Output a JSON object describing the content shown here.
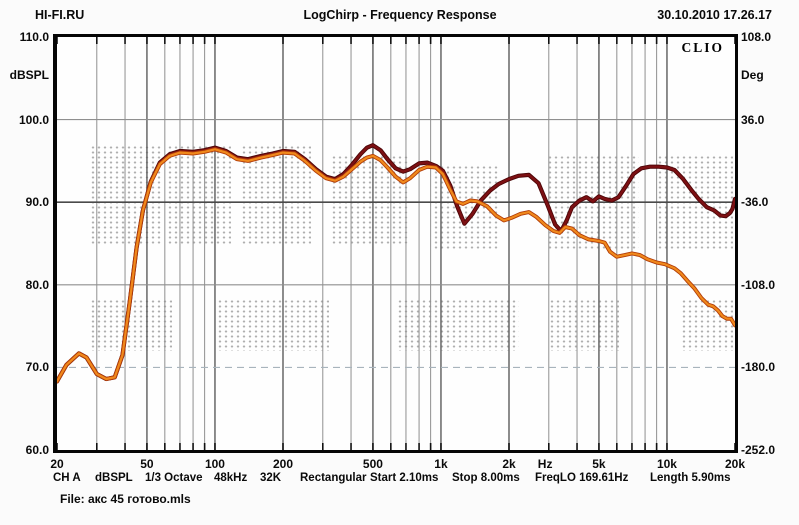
{
  "header": {
    "brand": "HI-FI.RU",
    "title": "LogChirp - Frequency Response",
    "datetime": "30.10.2010 17.26.17"
  },
  "logo": "CLIO",
  "status_bar": {
    "items": [
      "CH A",
      "dBSPL",
      "1/3 Octave",
      "48kHz",
      "32K",
      "Rectangular",
      "Start 2.10ms",
      "Stop 8.00ms",
      "FreqLO 169.61Hz",
      "Length 5.90ms"
    ]
  },
  "file_line": "File: акс 45 готово.mls",
  "chart_data": {
    "type": "line",
    "title": "LogChirp - Frequency Response",
    "x_scale": "log",
    "xlim": [
      20,
      20000
    ],
    "x_ticks": [
      "20",
      "50",
      "100",
      "200",
      "500",
      "1k",
      "2k",
      "5k",
      "10k",
      "20k"
    ],
    "x_tick_values": [
      20,
      50,
      100,
      200,
      500,
      1000,
      2000,
      5000,
      10000,
      20000
    ],
    "x_unit_label": "Hz",
    "x_unit_pos": 2890,
    "grid_freqs": [
      30,
      40,
      50,
      60,
      70,
      80,
      90,
      100,
      200,
      300,
      400,
      500,
      600,
      700,
      800,
      900,
      1000,
      2000,
      3000,
      4000,
      5000,
      6000,
      7000,
      8000,
      9000,
      10000
    ],
    "h_grid_db": [
      100,
      90,
      80,
      70
    ],
    "left_axis": {
      "label": "dBSPL",
      "lim": [
        60,
        110
      ],
      "ticks": [
        "110.0",
        "100.0",
        "90.0",
        "80.0",
        "70.0",
        "60.0"
      ],
      "tick_values": [
        110,
        100,
        90,
        80,
        70,
        60
      ]
    },
    "right_axis": {
      "label": "Deg",
      "lim": [
        -252,
        108
      ],
      "ticks": [
        "108.0",
        "36.0",
        "-36.0",
        "-108.0",
        "-180.0",
        "-252.0"
      ]
    },
    "series": [
      {
        "name": "frequency-response-dark-red",
        "color": "#7d1013",
        "outline": "#4c0507",
        "width": 2.4,
        "points": [
          [
            20,
            68.3
          ],
          [
            22,
            70.3
          ],
          [
            25,
            71.7
          ],
          [
            27,
            71.2
          ],
          [
            30,
            69.2
          ],
          [
            33,
            68.6
          ],
          [
            36,
            68.8
          ],
          [
            39,
            71.5
          ],
          [
            42,
            78.0
          ],
          [
            45,
            84.5
          ],
          [
            48,
            89.0
          ],
          [
            52,
            92.5
          ],
          [
            57,
            94.8
          ],
          [
            63,
            95.8
          ],
          [
            70,
            96.2
          ],
          [
            80,
            96.1
          ],
          [
            90,
            96.3
          ],
          [
            100,
            96.6
          ],
          [
            112,
            96.2
          ],
          [
            125,
            95.4
          ],
          [
            140,
            95.2
          ],
          [
            160,
            95.6
          ],
          [
            180,
            95.9
          ],
          [
            200,
            96.2
          ],
          [
            225,
            96.1
          ],
          [
            250,
            95.2
          ],
          [
            280,
            94.0
          ],
          [
            310,
            93.1
          ],
          [
            340,
            92.8
          ],
          [
            370,
            93.4
          ],
          [
            400,
            94.4
          ],
          [
            440,
            95.8
          ],
          [
            470,
            96.6
          ],
          [
            500,
            96.9
          ],
          [
            540,
            96.3
          ],
          [
            580,
            95.2
          ],
          [
            630,
            94.1
          ],
          [
            680,
            93.7
          ],
          [
            730,
            94.0
          ],
          [
            800,
            94.7
          ],
          [
            870,
            94.8
          ],
          [
            950,
            94.4
          ],
          [
            1020,
            93.8
          ],
          [
            1100,
            92.0
          ],
          [
            1180,
            89.5
          ],
          [
            1270,
            87.4
          ],
          [
            1380,
            88.6
          ],
          [
            1500,
            90.2
          ],
          [
            1650,
            91.4
          ],
          [
            1800,
            92.2
          ],
          [
            2000,
            92.8
          ],
          [
            2200,
            93.2
          ],
          [
            2450,
            93.3
          ],
          [
            2700,
            92.3
          ],
          [
            2950,
            89.8
          ],
          [
            3200,
            87.3
          ],
          [
            3400,
            86.5
          ],
          [
            3600,
            87.8
          ],
          [
            3800,
            89.4
          ],
          [
            4100,
            90.2
          ],
          [
            4400,
            90.6
          ],
          [
            4700,
            90.1
          ],
          [
            5000,
            90.7
          ],
          [
            5300,
            90.4
          ],
          [
            5700,
            90.2
          ],
          [
            6100,
            90.6
          ],
          [
            6600,
            92.0
          ],
          [
            7100,
            93.4
          ],
          [
            7700,
            94.1
          ],
          [
            8400,
            94.3
          ],
          [
            9200,
            94.3
          ],
          [
            10000,
            94.2
          ],
          [
            10800,
            93.9
          ],
          [
            11800,
            92.8
          ],
          [
            12800,
            91.5
          ],
          [
            13800,
            90.4
          ],
          [
            15000,
            89.4
          ],
          [
            16200,
            89.0
          ],
          [
            17200,
            88.4
          ],
          [
            18200,
            88.3
          ],
          [
            19000,
            88.7
          ],
          [
            19500,
            89.2
          ],
          [
            20000,
            90.4
          ]
        ]
      },
      {
        "name": "frequency-response-orange",
        "color": "#f0891c",
        "outline": "#b23c08",
        "width": 2.2,
        "points": [
          [
            20,
            68.3
          ],
          [
            22,
            70.3
          ],
          [
            25,
            71.7
          ],
          [
            27,
            71.2
          ],
          [
            30,
            69.2
          ],
          [
            33,
            68.6
          ],
          [
            36,
            68.8
          ],
          [
            39,
            71.5
          ],
          [
            42,
            78.0
          ],
          [
            45,
            84.5
          ],
          [
            48,
            89.0
          ],
          [
            52,
            92.4
          ],
          [
            57,
            94.6
          ],
          [
            63,
            95.6
          ],
          [
            70,
            96.0
          ],
          [
            80,
            95.9
          ],
          [
            90,
            96.1
          ],
          [
            100,
            96.4
          ],
          [
            112,
            96.0
          ],
          [
            125,
            95.2
          ],
          [
            140,
            95.0
          ],
          [
            160,
            95.4
          ],
          [
            180,
            95.7
          ],
          [
            200,
            96.0
          ],
          [
            225,
            95.9
          ],
          [
            250,
            95.0
          ],
          [
            280,
            93.8
          ],
          [
            310,
            92.9
          ],
          [
            340,
            92.6
          ],
          [
            370,
            93.1
          ],
          [
            400,
            93.9
          ],
          [
            440,
            94.9
          ],
          [
            470,
            95.4
          ],
          [
            500,
            95.6
          ],
          [
            540,
            95.1
          ],
          [
            580,
            94.2
          ],
          [
            630,
            93.1
          ],
          [
            680,
            92.4
          ],
          [
            730,
            92.9
          ],
          [
            800,
            93.9
          ],
          [
            870,
            94.3
          ],
          [
            950,
            94.2
          ],
          [
            1020,
            93.4
          ],
          [
            1100,
            91.5
          ],
          [
            1170,
            90.1
          ],
          [
            1250,
            89.8
          ],
          [
            1350,
            90.2
          ],
          [
            1450,
            90.1
          ],
          [
            1600,
            89.5
          ],
          [
            1750,
            88.4
          ],
          [
            1900,
            87.8
          ],
          [
            2050,
            88.1
          ],
          [
            2250,
            88.6
          ],
          [
            2450,
            88.8
          ],
          [
            2650,
            88.2
          ],
          [
            2900,
            87.2
          ],
          [
            3150,
            86.5
          ],
          [
            3350,
            86.3
          ],
          [
            3550,
            87.0
          ],
          [
            3800,
            86.8
          ],
          [
            4100,
            86.0
          ],
          [
            4500,
            85.5
          ],
          [
            5000,
            85.3
          ],
          [
            5300,
            85.1
          ],
          [
            5600,
            84.0
          ],
          [
            6000,
            83.4
          ],
          [
            6500,
            83.6
          ],
          [
            7000,
            83.8
          ],
          [
            7600,
            83.6
          ],
          [
            8200,
            83.1
          ],
          [
            9000,
            82.7
          ],
          [
            9800,
            82.5
          ],
          [
            10800,
            82.0
          ],
          [
            11500,
            81.4
          ],
          [
            12300,
            80.5
          ],
          [
            13200,
            79.6
          ],
          [
            14200,
            78.4
          ],
          [
            15200,
            77.6
          ],
          [
            16000,
            77.4
          ],
          [
            16800,
            76.9
          ],
          [
            17600,
            76.2
          ],
          [
            18400,
            75.9
          ],
          [
            19200,
            75.9
          ],
          [
            20000,
            75.1
          ]
        ]
      }
    ]
  }
}
